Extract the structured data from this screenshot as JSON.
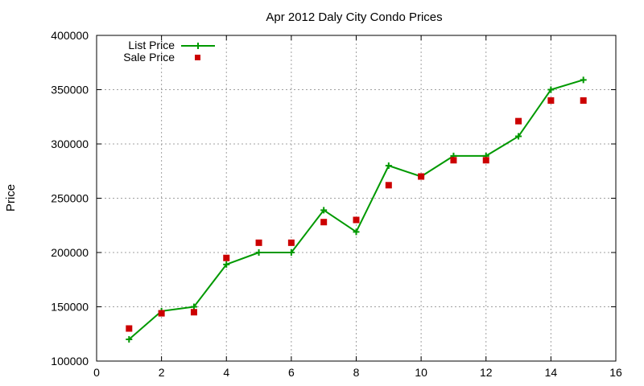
{
  "chart_data": {
    "type": "line",
    "title": "Apr 2012 Daly City Condo Prices",
    "xlabel": "",
    "ylabel": "Price",
    "xlim": [
      0,
      16
    ],
    "ylim": [
      100000,
      400000
    ],
    "x_ticks": [
      "0",
      "2",
      "4",
      "6",
      "8",
      "10",
      "12",
      "14",
      "16"
    ],
    "y_ticks": [
      "100000",
      "150000",
      "200000",
      "250000",
      "300000",
      "350000",
      "400000"
    ],
    "x_tick_values": [
      0,
      2,
      4,
      6,
      8,
      10,
      12,
      14,
      16
    ],
    "y_tick_values": [
      100000,
      150000,
      200000,
      250000,
      300000,
      350000,
      400000
    ],
    "grid": true,
    "legend_position": "top-left",
    "series": [
      {
        "name": "List Price",
        "style": "linespoints",
        "marker": "plus",
        "color": "#009900",
        "x": [
          1,
          2,
          3,
          4,
          5,
          6,
          7,
          8,
          9,
          10,
          11,
          12,
          13,
          14,
          15
        ],
        "values": [
          120000,
          146000,
          150000,
          189000,
          200000,
          200000,
          239000,
          219000,
          280000,
          270000,
          289000,
          289000,
          307000,
          350000,
          359000
        ]
      },
      {
        "name": "Sale Price",
        "style": "points",
        "marker": "square",
        "color": "#cc0000",
        "x": [
          1,
          2,
          3,
          4,
          5,
          6,
          7,
          8,
          9,
          10,
          11,
          12,
          13,
          14,
          15
        ],
        "values": [
          130000,
          144000,
          145000,
          195000,
          209000,
          209000,
          228000,
          230000,
          262000,
          270000,
          285000,
          285000,
          321000,
          340000,
          340000
        ]
      }
    ]
  }
}
